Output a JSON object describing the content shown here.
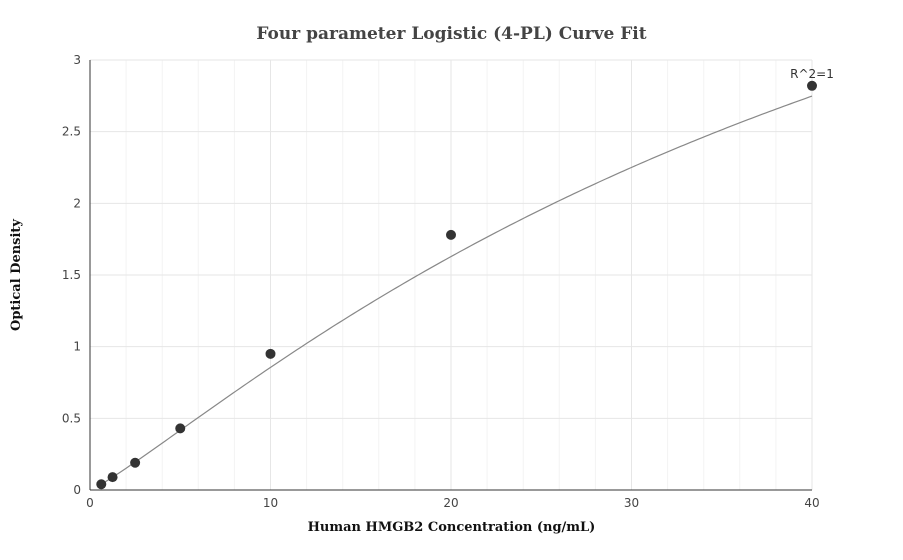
{
  "chart_data": {
    "type": "scatter",
    "title": "Four parameter Logistic (4-PL) Curve Fit",
    "xlabel": "Human HMGB2 Concentration (ng/mL)",
    "ylabel": "Optical Density",
    "xlim": [
      0,
      40
    ],
    "ylim": [
      0,
      3
    ],
    "x_ticks": [
      0,
      10,
      20,
      30,
      40
    ],
    "y_ticks": [
      0,
      0.5,
      1,
      1.5,
      2,
      2.5,
      3
    ],
    "x_minor_step": 2,
    "y_minor_step": 0.5,
    "grid": true,
    "series": [
      {
        "x": [
          0.625,
          1.25,
          2.5,
          5,
          10,
          20,
          40
        ],
        "y": [
          0.04,
          0.09,
          0.19,
          0.43,
          0.95,
          1.78,
          2.82
        ]
      }
    ],
    "fit_curve": {
      "model": "4PL",
      "A": 0.0,
      "B": 1.15,
      "C": 50,
      "D": 6.3
    },
    "annotations": [
      {
        "text": "R^2=1",
        "x": 40,
        "y": 2.82
      }
    ]
  }
}
